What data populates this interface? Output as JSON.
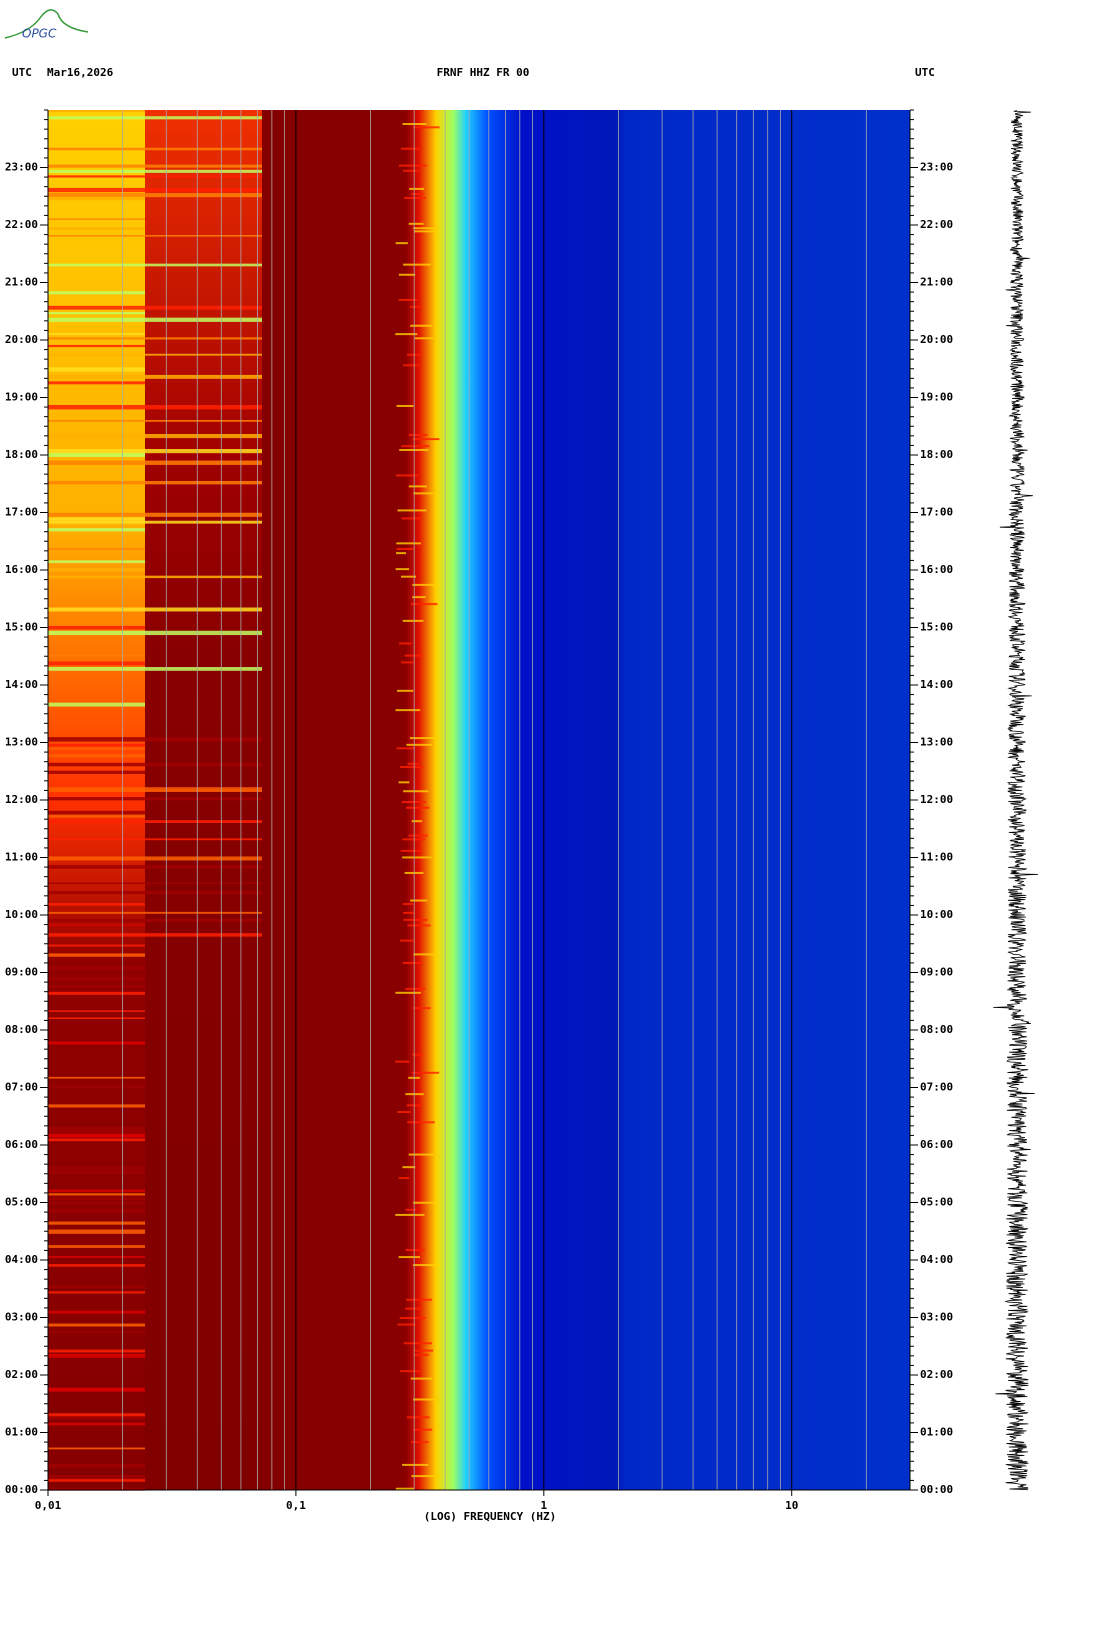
{
  "logo": "OPGC",
  "chart_data": {
    "type": "spectrogram",
    "title": "FRNF HHZ FR 00",
    "date": "Mar16,2026",
    "time_zone": "UTC",
    "x_label": "(LOG) FREQUENCY (HZ)",
    "xscale": "log",
    "xlim": [
      0.01,
      30
    ],
    "xticks": [
      {
        "value": 0.01,
        "label": "0,01"
      },
      {
        "value": 0.1,
        "label": "0,1"
      },
      1,
      10
    ],
    "ylim": [
      0,
      24
    ],
    "yticks": [
      {
        "value": 0,
        "label": "00:00"
      },
      {
        "value": 1,
        "label": "01:00"
      },
      {
        "value": 2,
        "label": "02:00"
      },
      {
        "value": 3,
        "label": "03:00"
      },
      {
        "value": 4,
        "label": "04:00"
      },
      {
        "value": 5,
        "label": "05:00"
      },
      {
        "value": 6,
        "label": "06:00"
      },
      {
        "value": 7,
        "label": "07:00"
      },
      {
        "value": 8,
        "label": "08:00"
      },
      {
        "value": 9,
        "label": "09:00"
      },
      {
        "value": 10,
        "label": "10:00"
      },
      {
        "value": 11,
        "label": "11:00"
      },
      {
        "value": 12,
        "label": "12:00"
      },
      {
        "value": 13,
        "label": "13:00"
      },
      {
        "value": 14,
        "label": "14:00"
      },
      {
        "value": 15,
        "label": "15:00"
      },
      {
        "value": 16,
        "label": "16:00"
      },
      {
        "value": 17,
        "label": "17:00"
      },
      {
        "value": 18,
        "label": "18:00"
      },
      {
        "value": 19,
        "label": "19:00"
      },
      {
        "value": 20,
        "label": "20:00"
      },
      {
        "value": 21,
        "label": "21:00"
      },
      {
        "value": 22,
        "label": "22:00"
      },
      {
        "value": 23,
        "label": "23:00"
      }
    ],
    "grid": true
  }
}
